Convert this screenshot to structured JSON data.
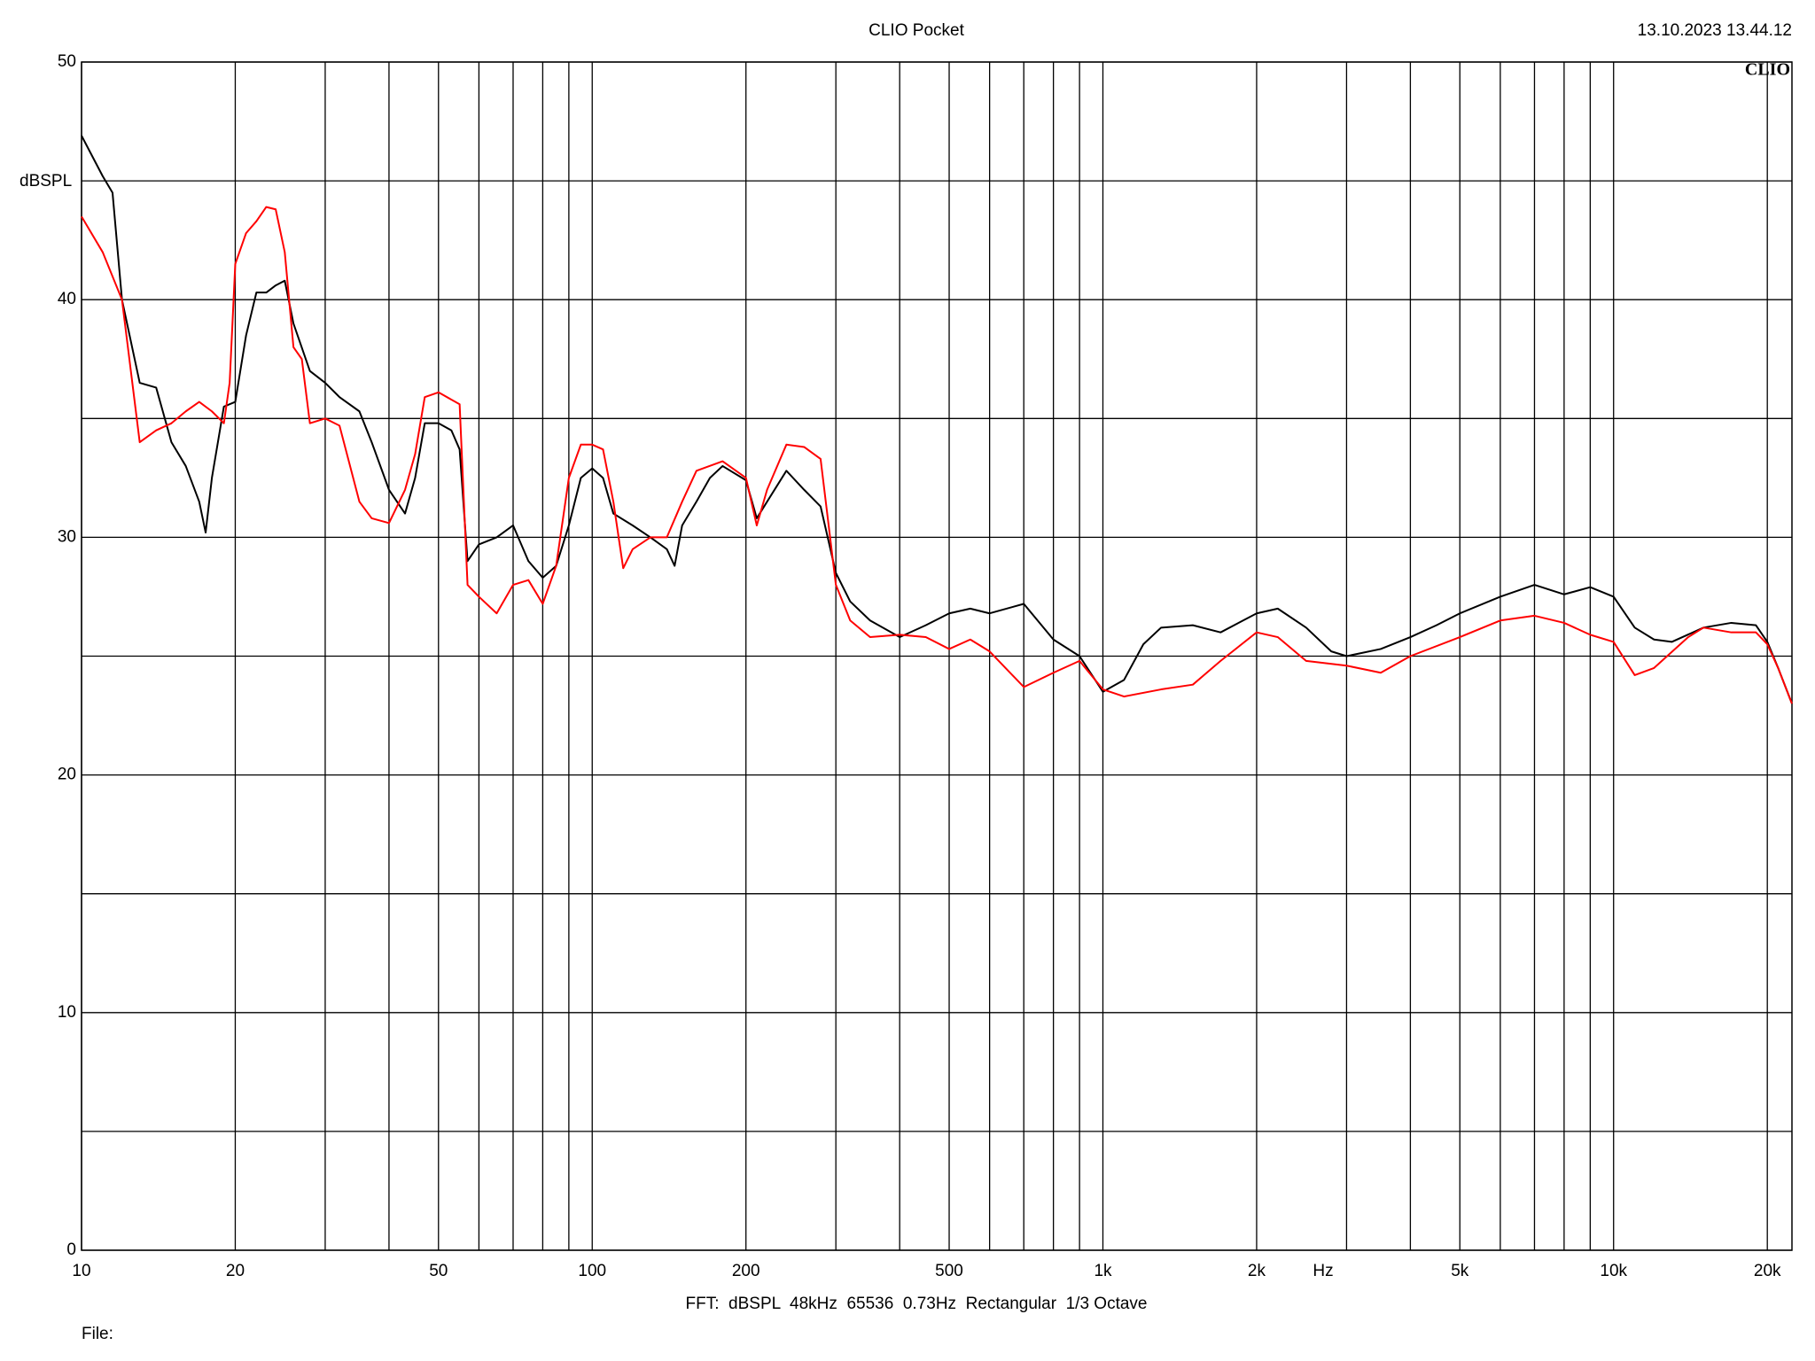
{
  "chart_data": {
    "type": "line",
    "title": "CLIO Pocket",
    "timestamp": "13.10.2023 13.44.12",
    "logo": "CLIO",
    "y_label": "dBSPL",
    "x_label": "Hz",
    "footer": "FFT:  dBSPL  48kHz  65536  0.73Hz  Rectangular  1/3 Octave",
    "file_label": "File:",
    "x_log": true,
    "grid": true,
    "xlim": [
      10,
      22350
    ],
    "ylim": [
      0,
      50
    ],
    "yticks": [
      0,
      10,
      20,
      30,
      40,
      50
    ],
    "yminor": [
      5,
      15,
      25,
      35,
      45
    ],
    "xticks": [
      10,
      20,
      50,
      100,
      200,
      500,
      {
        "value": 1000,
        "label": "1k"
      },
      {
        "value": 2000,
        "label": "2k"
      },
      {
        "value": 5000,
        "label": "5k"
      },
      {
        "value": 10000,
        "label": "10k"
      },
      {
        "value": 20000,
        "label": "20k"
      }
    ],
    "xminor": [
      30,
      40,
      60,
      70,
      80,
      90,
      300,
      400,
      600,
      700,
      800,
      900,
      3000,
      4000,
      6000,
      7000,
      8000,
      9000
    ],
    "series": [
      {
        "color": "#000000",
        "x": [
          10,
          11,
          11.5,
          12,
          13,
          14,
          15,
          16,
          17,
          17.5,
          18,
          19,
          20,
          21,
          22,
          23,
          24,
          25,
          26,
          28,
          30,
          32,
          35,
          37,
          40,
          43,
          45,
          47,
          50,
          53,
          55,
          57,
          60,
          65,
          70,
          75,
          80,
          85,
          90,
          95,
          100,
          105,
          110,
          120,
          130,
          140,
          145,
          150,
          160,
          170,
          180,
          200,
          210,
          220,
          240,
          260,
          280,
          300,
          320,
          350,
          400,
          450,
          500,
          550,
          600,
          700,
          800,
          900,
          1000,
          1100,
          1200,
          1300,
          1500,
          1700,
          2000,
          2200,
          2500,
          2800,
          3000,
          3500,
          4000,
          4500,
          5000,
          6000,
          7000,
          8000,
          9000,
          10000,
          11000,
          12000,
          13000,
          15000,
          17000,
          19000,
          20000,
          21000,
          22350
        ],
        "values": [
          46.9,
          45.2,
          44.5,
          40,
          36.5,
          36.3,
          34.0,
          33.0,
          31.5,
          30.2,
          32.5,
          35.5,
          35.7,
          38.5,
          40.3,
          40.3,
          40.6,
          40.8,
          39.0,
          37.0,
          36.5,
          35.9,
          35.3,
          34.0,
          32.0,
          31.0,
          32.5,
          34.8,
          34.8,
          34.5,
          33.7,
          29.0,
          29.7,
          30.0,
          30.5,
          29.0,
          28.3,
          28.8,
          30.5,
          32.5,
          32.9,
          32.5,
          31.0,
          30.5,
          30.0,
          29.5,
          28.8,
          30.5,
          31.5,
          32.5,
          33.0,
          32.4,
          30.8,
          31.5,
          32.8,
          32.0,
          31.3,
          28.5,
          27.3,
          26.5,
          25.8,
          26.3,
          26.8,
          27.0,
          26.8,
          27.2,
          25.7,
          25.0,
          23.5,
          24.0,
          25.5,
          26.2,
          26.3,
          26.0,
          26.8,
          27.0,
          26.2,
          25.2,
          25.0,
          25.3,
          25.8,
          26.3,
          26.8,
          27.5,
          28.0,
          27.6,
          27.9,
          27.5,
          26.2,
          25.7,
          25.6,
          26.2,
          26.4,
          26.3,
          25.6,
          24.5,
          23.0
        ]
      },
      {
        "color": "#ff0000",
        "x": [
          10,
          11,
          12,
          13,
          14,
          15,
          16,
          17,
          18,
          19,
          19.5,
          20,
          21,
          22,
          23,
          24,
          25,
          26,
          27,
          28,
          30,
          32,
          35,
          37,
          40,
          43,
          45,
          47,
          50,
          55,
          57,
          60,
          65,
          70,
          75,
          80,
          85,
          90,
          95,
          100,
          105,
          110,
          115,
          120,
          130,
          140,
          150,
          160,
          180,
          200,
          210,
          220,
          240,
          260,
          280,
          300,
          320,
          350,
          400,
          450,
          500,
          550,
          600,
          700,
          800,
          900,
          1000,
          1100,
          1300,
          1500,
          1700,
          2000,
          2200,
          2500,
          3000,
          3500,
          4000,
          5000,
          6000,
          7000,
          8000,
          9000,
          10000,
          11000,
          12000,
          14000,
          15000,
          17000,
          19000,
          20000,
          21000,
          22350
        ],
        "values": [
          43.5,
          42,
          40,
          34.0,
          34.5,
          34.8,
          35.3,
          35.7,
          35.3,
          34.8,
          36.5,
          41.5,
          42.8,
          43.3,
          43.9,
          43.8,
          42.0,
          38.0,
          37.5,
          34.8,
          35.0,
          34.7,
          31.5,
          30.8,
          30.6,
          32.0,
          33.5,
          35.9,
          36.1,
          35.6,
          28.0,
          27.5,
          26.8,
          28.0,
          28.2,
          27.2,
          28.8,
          32.5,
          33.9,
          33.9,
          33.7,
          31.5,
          28.7,
          29.5,
          30.0,
          30.0,
          31.5,
          32.8,
          33.2,
          32.5,
          30.5,
          32.0,
          33.9,
          33.8,
          33.3,
          28.0,
          26.5,
          25.8,
          25.9,
          25.8,
          25.3,
          25.7,
          25.2,
          23.7,
          24.3,
          24.8,
          23.6,
          23.3,
          23.6,
          23.8,
          24.8,
          26.0,
          25.8,
          24.8,
          24.6,
          24.3,
          25.0,
          25.8,
          26.5,
          26.7,
          26.4,
          25.9,
          25.6,
          24.2,
          24.5,
          25.8,
          26.2,
          26.0,
          26.0,
          25.5,
          24.5,
          23.0
        ]
      }
    ]
  }
}
